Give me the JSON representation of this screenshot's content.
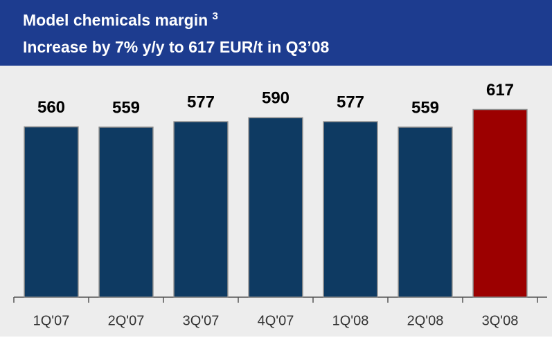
{
  "chart_data": {
    "type": "bar",
    "title": "Model chemicals margin",
    "title_footnote": "3",
    "subtitle": "Increase by 7% y/y to 617 EUR/t in Q3’08",
    "categories": [
      "1Q'07",
      "2Q'07",
      "3Q'07",
      "4Q'07",
      "1Q'08",
      "2Q'08",
      "3Q'08"
    ],
    "values": [
      560,
      559,
      577,
      590,
      577,
      559,
      617
    ],
    "colors": [
      "#0e3a62",
      "#0e3a62",
      "#0e3a62",
      "#0e3a62",
      "#0e3a62",
      "#0e3a62",
      "#9c0000"
    ],
    "ylim": [
      0,
      700
    ]
  }
}
